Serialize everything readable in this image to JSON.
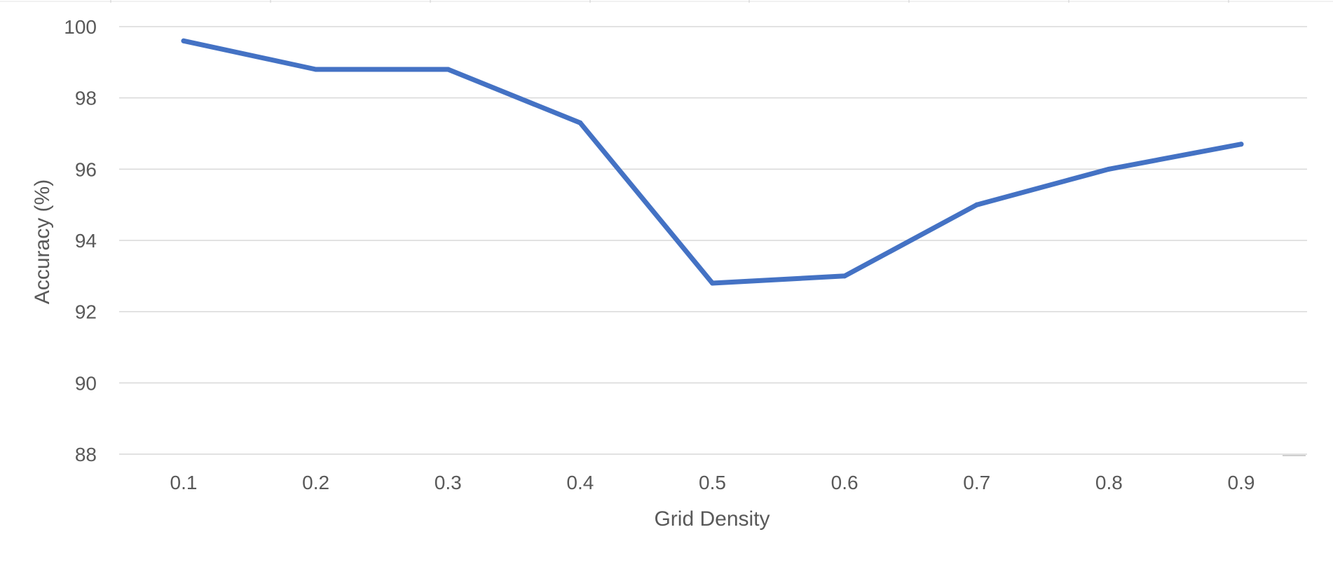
{
  "chart_data": {
    "type": "line",
    "title": "",
    "xlabel": "Grid Density",
    "ylabel": "Accuracy (%)",
    "categories": [
      "0.1",
      "0.2",
      "0.3",
      "0.4",
      "0.5",
      "0.6",
      "0.7",
      "0.8",
      "0.9"
    ],
    "series": [
      {
        "values": [
          99.6,
          98.8,
          98.8,
          97.3,
          92.8,
          93.0,
          95.0,
          96.0,
          96.7
        ],
        "color": "#4472C4"
      }
    ],
    "ylim": [
      88,
      100
    ],
    "yticks": [
      "88",
      "90",
      "92",
      "94",
      "96",
      "98",
      "100"
    ],
    "grid": true,
    "legend": "none",
    "colors": {
      "gridline": "#d9d9d9",
      "text": "#595959"
    }
  }
}
